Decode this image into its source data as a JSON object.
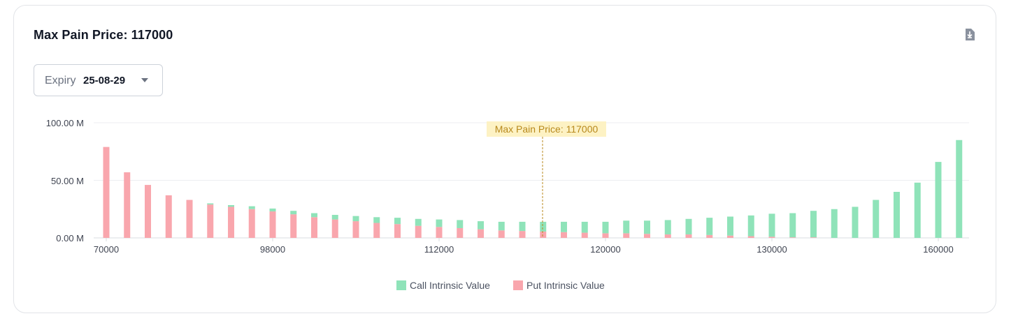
{
  "header": {
    "title": "Max Pain Price: 117000"
  },
  "expiry": {
    "label": "Expiry",
    "value": "25-08-29"
  },
  "colors": {
    "call": "#8fe3b9",
    "put": "#f9a6ad",
    "marker": "#b8891c",
    "marker_bg": "#fdf2c4"
  },
  "icons": {
    "download": "download-icon",
    "dropdown": "chevron-down-icon"
  },
  "chart_data": {
    "type": "bar",
    "stacked": true,
    "title": "",
    "xlabel": "",
    "ylabel": "",
    "ylim": [
      0,
      100
    ],
    "y_unit": "M",
    "y_ticks": [
      "100.00 M",
      "50.00 M",
      "0.00 M"
    ],
    "x_tick_labels": [
      "70000",
      "98000",
      "112000",
      "120000",
      "130000",
      "160000"
    ],
    "x_tick_category_index": [
      0,
      8,
      16,
      24,
      32,
      40
    ],
    "grid": "horizontal",
    "legend_position": "bottom-center",
    "categories_count": 42,
    "series": [
      {
        "name": "Call Intrinsic Value",
        "values": [
          0,
          0,
          0,
          0,
          0,
          1,
          1.5,
          2.5,
          2.5,
          3,
          3.5,
          4,
          4.5,
          5,
          5.5,
          6,
          6.5,
          7,
          7,
          7.5,
          8,
          8.5,
          9,
          9.5,
          10,
          11,
          11.5,
          12.5,
          13.5,
          15,
          16.5,
          18,
          20,
          21,
          23,
          25,
          27,
          33,
          40,
          48,
          66,
          85
        ]
      },
      {
        "name": "Put Intrinsic Value",
        "values": [
          79,
          57,
          46,
          37,
          33,
          29,
          27,
          25,
          23,
          20.5,
          18,
          16,
          14.5,
          13,
          12,
          10.5,
          9.5,
          8.5,
          7.5,
          6.5,
          6,
          5.5,
          5,
          4.5,
          4,
          4,
          3.5,
          3,
          3,
          2.5,
          2,
          1.5,
          1,
          0.5,
          0.5,
          0,
          0,
          0,
          0,
          0,
          0,
          0
        ]
      }
    ],
    "marker": {
      "label": "Max Pain Price: 117000",
      "category_index": 21
    }
  },
  "legend": {
    "call": "Call Intrinsic Value",
    "put": "Put Intrinsic Value"
  }
}
